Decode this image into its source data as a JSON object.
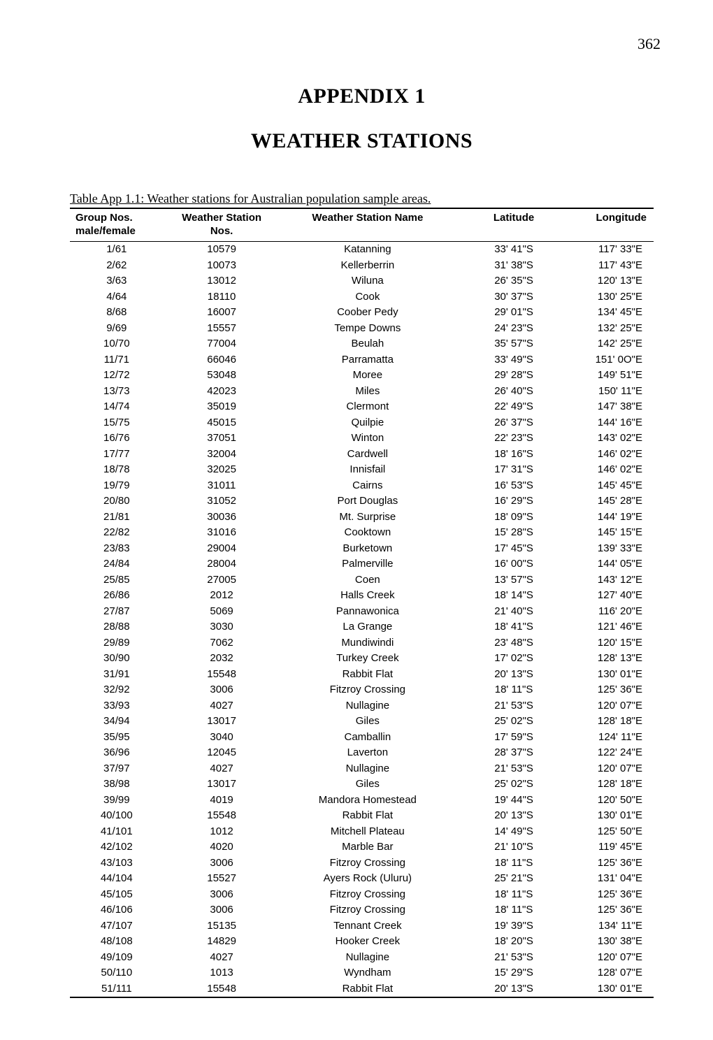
{
  "page_number": "362",
  "appendix_label": "APPENDIX 1",
  "title": "WEATHER STATIONS",
  "caption": "Table App 1.1: Weather stations for Australian population sample areas.",
  "columns": {
    "group": "Group Nos.",
    "group_sub": "male/female",
    "wsno": "Weather Station",
    "wsno_sub": "Nos.",
    "name": "Weather Station  Name",
    "lat": "Latitude",
    "lon": "Longitude"
  },
  "rows": [
    {
      "group": "1/61",
      "wsno": "10579",
      "name": "Katanning",
      "lat": "33' 41\"S",
      "lon": "117' 33\"E"
    },
    {
      "group": "2/62",
      "wsno": "10073",
      "name": "Kellerberrin",
      "lat": "31' 38\"S",
      "lon": "117' 43\"E"
    },
    {
      "group": "3/63",
      "wsno": "13012",
      "name": "Wiluna",
      "lat": "26' 35\"S",
      "lon": "120' 13\"E"
    },
    {
      "group": "4/64",
      "wsno": "18110",
      "name": "Cook",
      "lat": "30' 37\"S",
      "lon": "130' 25\"E"
    },
    {
      "group": "8/68",
      "wsno": "16007",
      "name": "Coober Pedy",
      "lat": "29' 01\"S",
      "lon": "134' 45\"E"
    },
    {
      "group": "9/69",
      "wsno": "15557",
      "name": "Tempe Downs",
      "lat": "24' 23\"S",
      "lon": "132' 25\"E"
    },
    {
      "group": "10/70",
      "wsno": "77004",
      "name": "Beulah",
      "lat": "35' 57\"S",
      "lon": "142' 25\"E"
    },
    {
      "group": "11/71",
      "wsno": "66046",
      "name": "Parramatta",
      "lat": "33' 49\"S",
      "lon": "151' 0O\"E"
    },
    {
      "group": "12/72",
      "wsno": "53048",
      "name": "Moree",
      "lat": "29' 28\"S",
      "lon": "149' 51\"E"
    },
    {
      "group": "13/73",
      "wsno": "42023",
      "name": "Miles",
      "lat": "26' 40\"S",
      "lon": "150' 11\"E"
    },
    {
      "group": "14/74",
      "wsno": "35019",
      "name": "Clermont",
      "lat": "22' 49\"S",
      "lon": "147' 38\"E"
    },
    {
      "group": "15/75",
      "wsno": "45015",
      "name": "Quilpie",
      "lat": "26' 37\"S",
      "lon": "144' 16\"E"
    },
    {
      "group": "16/76",
      "wsno": "37051",
      "name": "Winton",
      "lat": "22' 23\"S",
      "lon": "143' 02\"E"
    },
    {
      "group": "17/77",
      "wsno": "32004",
      "name": "Cardwell",
      "lat": "18' 16\"S",
      "lon": "146' 02\"E"
    },
    {
      "group": "18/78",
      "wsno": "32025",
      "name": "Innisfail",
      "lat": "17' 31\"S",
      "lon": "146' 02\"E"
    },
    {
      "group": "19/79",
      "wsno": "31011",
      "name": "Cairns",
      "lat": "16' 53\"S",
      "lon": "145' 45\"E"
    },
    {
      "group": "20/80",
      "wsno": "31052",
      "name": "Port Douglas",
      "lat": "16' 29\"S",
      "lon": "145' 28\"E"
    },
    {
      "group": "21/81",
      "wsno": "30036",
      "name": "Mt. Surprise",
      "lat": "18' 09\"S",
      "lon": "144' 19\"E"
    },
    {
      "group": "22/82",
      "wsno": "31016",
      "name": "Cooktown",
      "lat": "15' 28\"S",
      "lon": "145' 15\"E"
    },
    {
      "group": "23/83",
      "wsno": "29004",
      "name": "Burketown",
      "lat": "17' 45\"S",
      "lon": "139' 33\"E"
    },
    {
      "group": "24/84",
      "wsno": "28004",
      "name": "Palmerville",
      "lat": "16' 00\"S",
      "lon": "144' 05\"E"
    },
    {
      "group": "25/85",
      "wsno": "27005",
      "name": "Coen",
      "lat": "13' 57\"S",
      "lon": "143' 12\"E"
    },
    {
      "group": "26/86",
      "wsno": "2012",
      "name": "Halls Creek",
      "lat": "18' 14\"S",
      "lon": "127' 40\"E"
    },
    {
      "group": "27/87",
      "wsno": "5069",
      "name": "Pannawonica",
      "lat": "21' 40\"S",
      "lon": "116' 20\"E"
    },
    {
      "group": "28/88",
      "wsno": "3030",
      "name": "La Grange",
      "lat": "18' 41\"S",
      "lon": "121' 46\"E"
    },
    {
      "group": "29/89",
      "wsno": "7062",
      "name": "Mundiwindi",
      "lat": "23' 48\"S",
      "lon": "120' 15\"E"
    },
    {
      "group": "30/90",
      "wsno": "2032",
      "name": "Turkey Creek",
      "lat": "17' 02\"S",
      "lon": "128' 13\"E"
    },
    {
      "group": "31/91",
      "wsno": "15548",
      "name": "Rabbit Flat",
      "lat": "20' 13\"S",
      "lon": "130' 01\"E"
    },
    {
      "group": "32/92",
      "wsno": "3006",
      "name": "Fitzroy Crossing",
      "lat": "18' 11\"S",
      "lon": "125' 36\"E"
    },
    {
      "group": "33/93",
      "wsno": "4027",
      "name": "Nullagine",
      "lat": "21' 53\"S",
      "lon": "120' 07\"E"
    },
    {
      "group": "34/94",
      "wsno": "13017",
      "name": "Giles",
      "lat": "25' 02\"S",
      "lon": "128' 18\"E"
    },
    {
      "group": "35/95",
      "wsno": "3040",
      "name": "Camballin",
      "lat": "17' 59\"S",
      "lon": "124' 11\"E"
    },
    {
      "group": "36/96",
      "wsno": "12045",
      "name": "Laverton",
      "lat": "28' 37\"S",
      "lon": "122' 24\"E"
    },
    {
      "group": "37/97",
      "wsno": "4027",
      "name": "Nullagine",
      "lat": "21' 53\"S",
      "lon": "120' 07\"E"
    },
    {
      "group": "38/98",
      "wsno": "13017",
      "name": "Giles",
      "lat": "25' 02\"S",
      "lon": "128' 18\"E"
    },
    {
      "group": "39/99",
      "wsno": "4019",
      "name": "Mandora Homestead",
      "lat": "19' 44\"S",
      "lon": "120' 50\"E"
    },
    {
      "group": "40/100",
      "wsno": "15548",
      "name": "Rabbit Flat",
      "lat": "20' 13\"S",
      "lon": "130' 01\"E"
    },
    {
      "group": "41/101",
      "wsno": "1012",
      "name": "Mitchell Plateau",
      "lat": "14' 49\"S",
      "lon": "125' 50\"E"
    },
    {
      "group": "42/102",
      "wsno": "4020",
      "name": "Marble Bar",
      "lat": "21' 10\"S",
      "lon": "119' 45\"E"
    },
    {
      "group": "43/103",
      "wsno": "3006",
      "name": "Fitzroy Crossing",
      "lat": "18' 11\"S",
      "lon": "125' 36\"E"
    },
    {
      "group": "44/104",
      "wsno": "15527",
      "name": "Ayers Rock (Uluru)",
      "lat": "25' 21\"S",
      "lon": "131' 04\"E"
    },
    {
      "group": "45/105",
      "wsno": "3006",
      "name": "Fitzroy Crossing",
      "lat": "18' 11\"S",
      "lon": "125' 36\"E"
    },
    {
      "group": "46/106",
      "wsno": "3006",
      "name": "Fitzroy Crossing",
      "lat": "18' 11\"S",
      "lon": "125' 36\"E"
    },
    {
      "group": "47/107",
      "wsno": "15135",
      "name": "Tennant Creek",
      "lat": "19' 39\"S",
      "lon": "134' 11\"E"
    },
    {
      "group": "48/108",
      "wsno": "14829",
      "name": "Hooker Creek",
      "lat": "18' 20\"S",
      "lon": "130' 38\"E"
    },
    {
      "group": "49/109",
      "wsno": "4027",
      "name": "Nullagine",
      "lat": "21' 53\"S",
      "lon": "120' 07\"E"
    },
    {
      "group": "50/110",
      "wsno": "1013",
      "name": "Wyndham",
      "lat": "15' 29\"S",
      "lon": "128' 07\"E"
    },
    {
      "group": "51/111",
      "wsno": "15548",
      "name": "Rabbit Flat",
      "lat": "20' 13\"S",
      "lon": "130' 01\"E"
    }
  ]
}
